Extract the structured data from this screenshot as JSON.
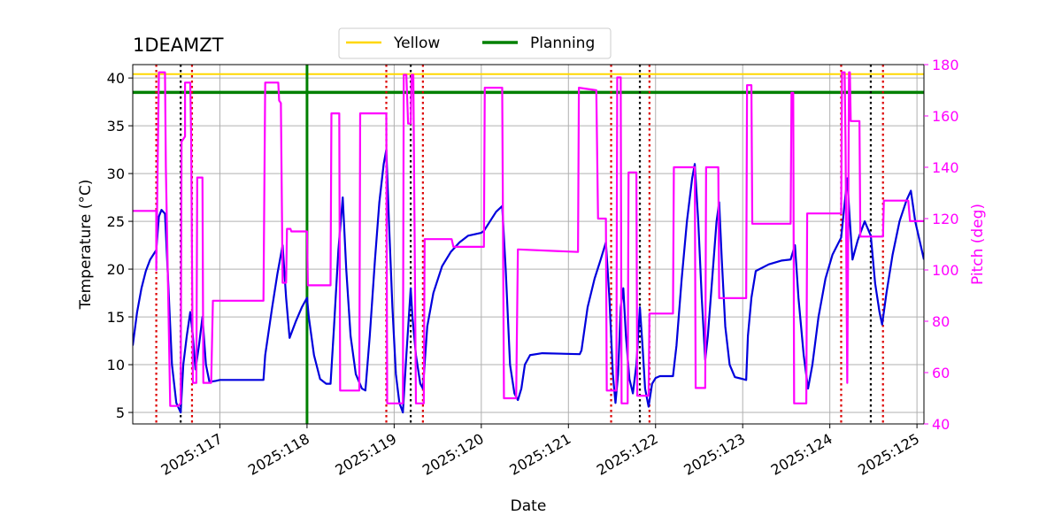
{
  "chart_data": {
    "type": "line",
    "title": "1DEAMZT",
    "xlabel": "Date",
    "ylabel_left": "Temperature ($^\\circ$C)",
    "ylabel_left_display": "Temperature (°C)",
    "ylabel_right": "Pitch (deg)",
    "xlim": [
      116.0,
      125.08
    ],
    "ylim_left": [
      3.8,
      41.4
    ],
    "ylim_right": [
      40,
      180
    ],
    "x_ticks": [
      117,
      118,
      119,
      120,
      121,
      122,
      123,
      124,
      125
    ],
    "x_tick_labels": [
      "2025:117",
      "2025:118",
      "2025:119",
      "2025:120",
      "2025:121",
      "2025:122",
      "2025:123",
      "2025:124",
      "2025:125"
    ],
    "y_left_ticks": [
      5,
      10,
      15,
      20,
      25,
      30,
      35,
      40
    ],
    "y_right_ticks": [
      40,
      60,
      80,
      100,
      120,
      140,
      160,
      180
    ],
    "grid": true,
    "legend_position": "top-center",
    "legend": [
      {
        "name": "Yellow",
        "color": "#ffd700"
      },
      {
        "name": "Planning",
        "color": "#008000"
      }
    ],
    "limits": [
      {
        "name": "Yellow",
        "value": 40.4,
        "color": "#ffd700"
      },
      {
        "name": "Planning",
        "value": 38.5,
        "color": "#008000"
      }
    ],
    "now_line": {
      "x": 118.0,
      "color": "#008000"
    },
    "colors": {
      "temperature": "#0000dd",
      "pitch": "#ff00ff",
      "red_dotted": "#dd0000",
      "black_dotted": "#000000"
    },
    "red_dotted_x": [
      116.27,
      116.68,
      118.91,
      119.33,
      121.49,
      121.93,
      124.13,
      124.61
    ],
    "black_dotted_x": [
      116.55,
      119.19,
      121.82,
      124.47
    ],
    "series": [
      {
        "axis": "left",
        "color": "#0000dd",
        "points": [
          [
            116.0,
            12.0
          ],
          [
            116.05,
            15.5
          ],
          [
            116.1,
            18.0
          ],
          [
            116.15,
            19.8
          ],
          [
            116.2,
            21.0
          ],
          [
            116.27,
            22.0
          ],
          [
            116.3,
            25.5
          ],
          [
            116.33,
            26.2
          ],
          [
            116.37,
            25.8
          ],
          [
            116.4,
            20.0
          ],
          [
            116.45,
            10.0
          ],
          [
            116.5,
            6.0
          ],
          [
            116.55,
            5.0
          ],
          [
            116.58,
            10.0
          ],
          [
            116.62,
            13.0
          ],
          [
            116.66,
            15.5
          ],
          [
            116.69,
            13.0
          ],
          [
            116.72,
            9.5
          ],
          [
            116.76,
            12.0
          ],
          [
            116.8,
            15.0
          ],
          [
            116.84,
            10.0
          ],
          [
            116.88,
            8.2
          ],
          [
            116.95,
            8.3
          ],
          [
            117.0,
            8.4
          ],
          [
            117.5,
            8.4
          ],
          [
            117.52,
            11.0
          ],
          [
            117.6,
            16.0
          ],
          [
            117.66,
            19.5
          ],
          [
            117.72,
            22.5
          ],
          [
            117.76,
            17.0
          ],
          [
            117.8,
            12.8
          ],
          [
            117.87,
            14.5
          ],
          [
            117.94,
            16.0
          ],
          [
            118.0,
            17.0
          ],
          [
            118.02,
            15.0
          ],
          [
            118.08,
            11.0
          ],
          [
            118.15,
            8.5
          ],
          [
            118.22,
            8.0
          ],
          [
            118.27,
            8.0
          ],
          [
            118.31,
            14.0
          ],
          [
            118.36,
            22.0
          ],
          [
            118.41,
            27.5
          ],
          [
            118.45,
            20.0
          ],
          [
            118.5,
            13.0
          ],
          [
            118.56,
            9.0
          ],
          [
            118.63,
            7.5
          ],
          [
            118.67,
            7.3
          ],
          [
            118.72,
            13.0
          ],
          [
            118.78,
            21.0
          ],
          [
            118.83,
            27.0
          ],
          [
            118.88,
            31.0
          ],
          [
            118.91,
            32.5
          ],
          [
            118.94,
            25.0
          ],
          [
            118.98,
            16.0
          ],
          [
            119.02,
            9.0
          ],
          [
            119.06,
            6.0
          ],
          [
            119.1,
            5.0
          ],
          [
            119.14,
            11.0
          ],
          [
            119.19,
            18.0
          ],
          [
            119.21,
            15.0
          ],
          [
            119.25,
            11.0
          ],
          [
            119.3,
            8.0
          ],
          [
            119.33,
            7.5
          ],
          [
            119.38,
            14.0
          ],
          [
            119.45,
            17.5
          ],
          [
            119.55,
            20.3
          ],
          [
            119.65,
            21.8
          ],
          [
            119.75,
            22.8
          ],
          [
            119.85,
            23.5
          ],
          [
            120.0,
            23.8
          ],
          [
            120.03,
            24.0
          ],
          [
            120.1,
            25.0
          ],
          [
            120.17,
            26.0
          ],
          [
            120.24,
            26.6
          ],
          [
            120.28,
            20.0
          ],
          [
            120.33,
            10.0
          ],
          [
            120.38,
            7.0
          ],
          [
            120.42,
            6.3
          ],
          [
            120.46,
            7.5
          ],
          [
            120.5,
            10.0
          ],
          [
            120.56,
            11.0
          ],
          [
            120.7,
            11.2
          ],
          [
            121.13,
            11.1
          ],
          [
            121.15,
            11.5
          ],
          [
            121.22,
            16.0
          ],
          [
            121.3,
            19.0
          ],
          [
            121.37,
            21.0
          ],
          [
            121.43,
            22.8
          ],
          [
            121.47,
            17.0
          ],
          [
            121.51,
            9.0
          ],
          [
            121.54,
            6.0
          ],
          [
            121.57,
            9.0
          ],
          [
            121.6,
            16.0
          ],
          [
            121.63,
            18.0
          ],
          [
            121.66,
            13.0
          ],
          [
            121.7,
            8.5
          ],
          [
            121.74,
            7.0
          ],
          [
            121.78,
            10.0
          ],
          [
            121.82,
            16.0
          ],
          [
            121.85,
            12.0
          ],
          [
            121.88,
            7.5
          ],
          [
            121.92,
            5.6
          ],
          [
            121.96,
            8.0
          ],
          [
            122.0,
            8.6
          ],
          [
            122.05,
            8.8
          ],
          [
            122.2,
            8.8
          ],
          [
            122.24,
            12.0
          ],
          [
            122.3,
            19.0
          ],
          [
            122.36,
            25.0
          ],
          [
            122.42,
            29.5
          ],
          [
            122.45,
            31.0
          ],
          [
            122.49,
            25.0
          ],
          [
            122.53,
            17.0
          ],
          [
            122.57,
            10.5
          ],
          [
            122.6,
            13.0
          ],
          [
            122.65,
            19.0
          ],
          [
            122.7,
            25.0
          ],
          [
            122.73,
            27.0
          ],
          [
            122.76,
            21.0
          ],
          [
            122.8,
            14.0
          ],
          [
            122.85,
            10.0
          ],
          [
            122.91,
            8.7
          ],
          [
            123.0,
            8.5
          ],
          [
            123.04,
            8.4
          ],
          [
            123.06,
            13.0
          ],
          [
            123.1,
            17.0
          ],
          [
            123.15,
            19.8
          ],
          [
            123.3,
            20.5
          ],
          [
            123.45,
            20.9
          ],
          [
            123.55,
            21.0
          ],
          [
            123.6,
            22.5
          ],
          [
            123.64,
            17.0
          ],
          [
            123.7,
            11.0
          ],
          [
            123.75,
            7.5
          ],
          [
            123.8,
            10.0
          ],
          [
            123.87,
            15.0
          ],
          [
            123.95,
            19.0
          ],
          [
            124.03,
            21.5
          ],
          [
            124.13,
            23.3
          ],
          [
            124.16,
            26.0
          ],
          [
            124.2,
            29.5
          ],
          [
            124.23,
            25.0
          ],
          [
            124.26,
            21.0
          ],
          [
            124.32,
            23.0
          ],
          [
            124.4,
            25.0
          ],
          [
            124.47,
            23.5
          ],
          [
            124.52,
            18.5
          ],
          [
            124.57,
            15.5
          ],
          [
            124.6,
            14.2
          ],
          [
            124.65,
            17.5
          ],
          [
            124.72,
            21.5
          ],
          [
            124.8,
            25.0
          ],
          [
            124.88,
            27.2
          ],
          [
            124.93,
            28.2
          ],
          [
            124.98,
            25.0
          ],
          [
            125.08,
            21.0
          ]
        ]
      },
      {
        "axis": "right",
        "color": "#ff00ff",
        "points": [
          [
            116.0,
            123.0
          ],
          [
            116.27,
            123.0
          ],
          [
            116.27,
            100.0
          ],
          [
            116.3,
            177.0
          ],
          [
            116.37,
            177.0
          ],
          [
            116.38,
            140.0
          ],
          [
            116.43,
            47.0
          ],
          [
            116.52,
            47.0
          ],
          [
            116.55,
            48.0
          ],
          [
            116.56,
            150.0
          ],
          [
            116.6,
            152.0
          ],
          [
            116.6,
            173.0
          ],
          [
            116.66,
            173.0
          ],
          [
            116.67,
            152.0
          ],
          [
            116.69,
            56.0
          ],
          [
            116.73,
            56.0
          ],
          [
            116.74,
            136.0
          ],
          [
            116.8,
            136.0
          ],
          [
            116.81,
            56.0
          ],
          [
            116.9,
            56.0
          ],
          [
            116.92,
            88.0
          ],
          [
            117.5,
            88.0
          ],
          [
            117.52,
            173.0
          ],
          [
            117.67,
            173.0
          ],
          [
            117.68,
            166.0
          ],
          [
            117.7,
            165.0
          ],
          [
            117.72,
            95.0
          ],
          [
            117.76,
            95.0
          ],
          [
            117.77,
            116.0
          ],
          [
            117.81,
            116.0
          ],
          [
            117.82,
            115.0
          ],
          [
            118.0,
            115.0
          ],
          [
            118.01,
            94.0
          ],
          [
            118.27,
            94.0
          ],
          [
            118.28,
            161.0
          ],
          [
            118.33,
            161.0
          ],
          [
            118.37,
            161.0
          ],
          [
            118.38,
            53.0
          ],
          [
            118.6,
            53.0
          ],
          [
            118.61,
            161.0
          ],
          [
            118.91,
            161.0
          ],
          [
            118.92,
            48.0
          ],
          [
            119.1,
            48.0
          ],
          [
            119.11,
            176.0
          ],
          [
            119.14,
            176.0
          ],
          [
            119.16,
            157.0
          ],
          [
            119.19,
            157.0
          ],
          [
            119.2,
            176.0
          ],
          [
            119.22,
            176.0
          ],
          [
            119.25,
            48.0
          ],
          [
            119.34,
            48.0
          ],
          [
            119.35,
            112.0
          ],
          [
            119.66,
            112.0
          ],
          [
            119.68,
            109.0
          ],
          [
            120.03,
            109.0
          ],
          [
            120.04,
            171.0
          ],
          [
            120.24,
            171.0
          ],
          [
            120.26,
            50.0
          ],
          [
            120.4,
            50.0
          ],
          [
            120.42,
            108.0
          ],
          [
            121.11,
            107.0
          ],
          [
            121.12,
            171.0
          ],
          [
            121.32,
            170.0
          ],
          [
            121.34,
            120.0
          ],
          [
            121.43,
            120.0
          ],
          [
            121.44,
            53.0
          ],
          [
            121.55,
            53.0
          ],
          [
            121.56,
            175.0
          ],
          [
            121.6,
            175.0
          ],
          [
            121.61,
            48.0
          ],
          [
            121.68,
            48.0
          ],
          [
            121.69,
            138.0
          ],
          [
            121.78,
            138.0
          ],
          [
            121.79,
            51.0
          ],
          [
            121.92,
            51.0
          ],
          [
            121.93,
            83.0
          ],
          [
            122.2,
            83.0
          ],
          [
            122.21,
            140.0
          ],
          [
            122.45,
            140.0
          ],
          [
            122.46,
            54.0
          ],
          [
            122.57,
            54.0
          ],
          [
            122.58,
            140.0
          ],
          [
            122.72,
            140.0
          ],
          [
            122.73,
            89.0
          ],
          [
            123.04,
            89.0
          ],
          [
            123.05,
            172.0
          ],
          [
            123.1,
            172.0
          ],
          [
            123.11,
            118.0
          ],
          [
            123.55,
            118.0
          ],
          [
            123.56,
            169.0
          ],
          [
            123.58,
            169.0
          ],
          [
            123.59,
            48.0
          ],
          [
            123.73,
            48.0
          ],
          [
            123.74,
            122.0
          ],
          [
            124.13,
            122.0
          ],
          [
            124.14,
            177.0
          ],
          [
            124.17,
            177.0
          ],
          [
            124.18,
            150.0
          ],
          [
            124.2,
            56.0
          ],
          [
            124.21,
            110.0
          ],
          [
            124.22,
            177.0
          ],
          [
            124.23,
            177.0
          ],
          [
            124.24,
            158.0
          ],
          [
            124.34,
            158.0
          ],
          [
            124.35,
            113.0
          ],
          [
            124.61,
            113.0
          ],
          [
            124.62,
            127.0
          ],
          [
            124.9,
            127.0
          ],
          [
            124.92,
            119.0
          ],
          [
            125.08,
            119.0
          ]
        ]
      }
    ]
  }
}
